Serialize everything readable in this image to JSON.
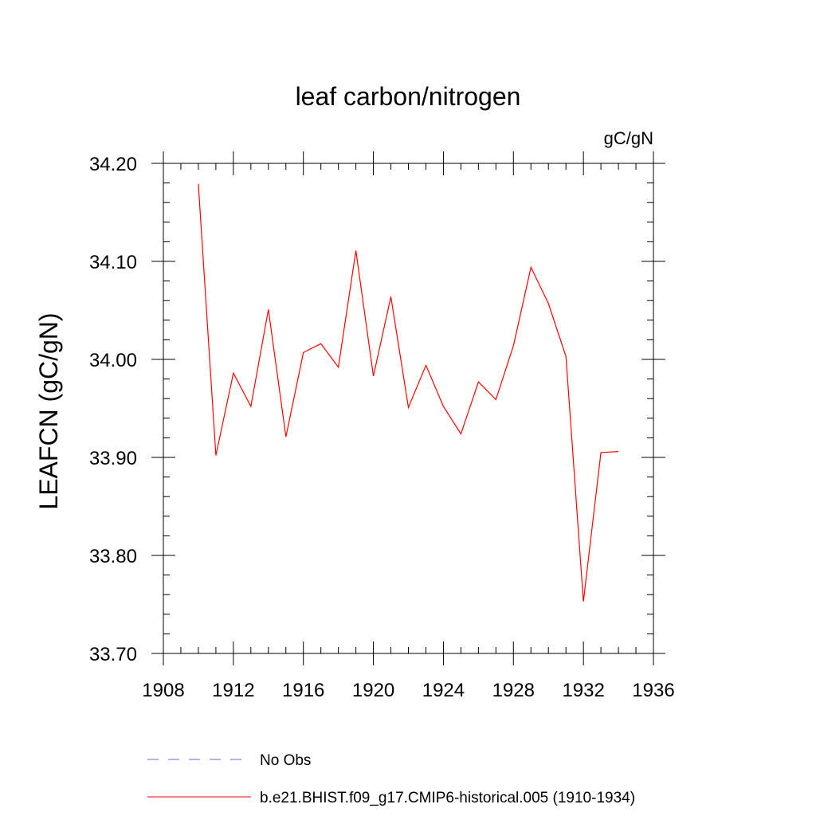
{
  "chart_data": {
    "type": "line",
    "title": "leaf carbon/nitrogen",
    "units": "gC/gN",
    "ylabel": "LEAFCN  (gC/gN)",
    "xlabel": "",
    "xlim": [
      1908,
      1936
    ],
    "ylim": [
      33.7,
      34.2
    ],
    "x_ticks": [
      1908,
      1912,
      1916,
      1920,
      1924,
      1928,
      1932,
      1936
    ],
    "y_ticks": [
      "33.70",
      "33.80",
      "33.90",
      "34.00",
      "34.10",
      "34.20"
    ],
    "grid": false,
    "x": [
      1910,
      1911,
      1912,
      1913,
      1914,
      1915,
      1916,
      1917,
      1918,
      1919,
      1920,
      1921,
      1922,
      1923,
      1924,
      1925,
      1926,
      1927,
      1928,
      1929,
      1930,
      1931,
      1932,
      1933,
      1934
    ],
    "series": [
      {
        "name": "b.e21.BHIST.f09_g17.CMIP6-historical.005 (1910-1934)",
        "color": "#ff0000",
        "values": [
          34.179,
          33.902,
          33.986,
          33.952,
          34.051,
          33.921,
          34.007,
          34.016,
          33.992,
          34.111,
          33.983,
          34.064,
          33.951,
          33.994,
          33.952,
          33.924,
          33.977,
          33.959,
          34.014,
          34.094,
          34.057,
          34.003,
          33.753,
          33.905,
          33.906
        ]
      }
    ],
    "legend": {
      "placement": "bottom",
      "entries": [
        {
          "label": "No Obs",
          "color": "#6a6ac8",
          "style": "dashed"
        },
        {
          "label": "b.e21.BHIST.f09_g17.CMIP6-historical.005 (1910-1934)",
          "color": "#ff0000",
          "style": "solid"
        }
      ]
    }
  }
}
